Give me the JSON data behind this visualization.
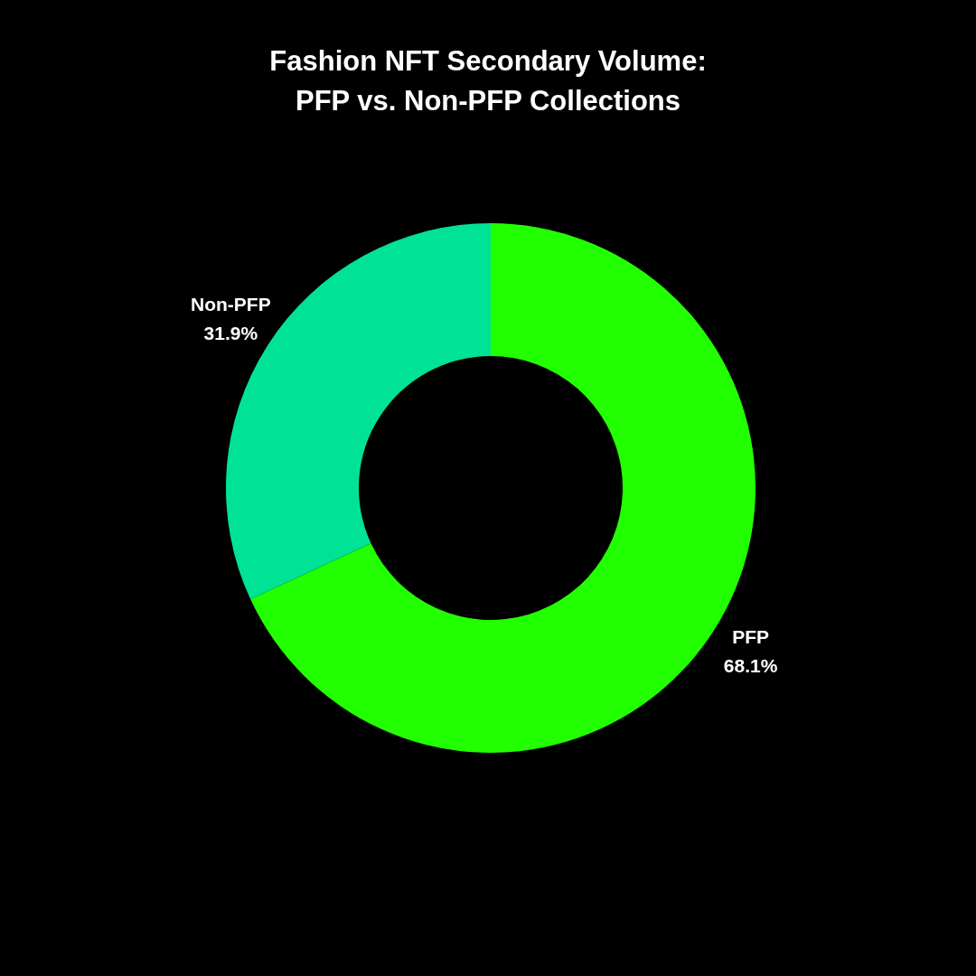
{
  "chart_data": {
    "type": "donut",
    "title": "Fashion NFT Secondary Volume:\nPFP vs. Non-PFP Collections",
    "categories": [
      "PFP",
      "Non-PFP"
    ],
    "values": [
      68.1,
      31.9
    ],
    "colors": [
      "#21ff00",
      "#00e396"
    ],
    "value_labels": [
      "68.1%",
      "31.9%"
    ]
  }
}
